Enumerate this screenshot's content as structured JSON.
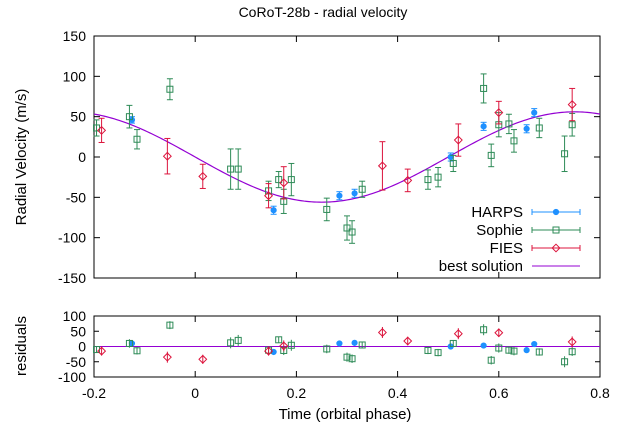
{
  "chart_data": {
    "type": "scatter",
    "title": "CoRoT-28b - radial velocity",
    "xlabel": "Time (orbital phase)",
    "ylabel": "Radial Velocity (m/s)",
    "residual_ylabel": "residuals",
    "xlim": [
      -0.2,
      0.8
    ],
    "ylim": [
      -150,
      150
    ],
    "residual_ylim": [
      -100,
      100
    ],
    "x_ticks": [
      "-0.2",
      "0",
      "0.2",
      "0.4",
      "0.6",
      "0.8"
    ],
    "x_tick_values": [
      -0.2,
      0,
      0.2,
      0.4,
      0.6,
      0.8
    ],
    "y_ticks": [
      "-150",
      "-100",
      "-50",
      "0",
      "50",
      "100",
      "150"
    ],
    "y_tick_values": [
      -150,
      -100,
      -50,
      0,
      50,
      100,
      150
    ],
    "residual_ticks": [
      "-100",
      "-50",
      "0",
      "50",
      "100"
    ],
    "residual_tick_values": [
      -100,
      -50,
      0,
      50,
      100
    ],
    "legend_position": "bottom-right",
    "model": {
      "name": "best solution",
      "amplitude": 56,
      "phase_of_max": 0.75,
      "color": "#9400d3"
    },
    "series": [
      {
        "name": "HARPS",
        "marker": "filled-circle",
        "color": "#1e90ff",
        "x": [
          -0.125,
          0.155,
          0.285,
          0.315,
          0.505,
          0.57,
          0.655,
          0.67
        ],
        "y": [
          46,
          -66,
          -48,
          -45,
          0,
          38,
          35,
          55
        ],
        "err": [
          4,
          5,
          5,
          5,
          5,
          5,
          5,
          5
        ],
        "residuals": [
          10,
          -18,
          10,
          12,
          0,
          3,
          -12,
          8
        ]
      },
      {
        "name": "Sophie",
        "marker": "open-square",
        "color": "#2e8b57",
        "x": [
          -0.195,
          -0.13,
          -0.115,
          -0.05,
          0.07,
          0.085,
          0.145,
          0.165,
          0.175,
          0.19,
          0.26,
          0.3,
          0.31,
          0.33,
          0.46,
          0.48,
          0.51,
          0.57,
          0.585,
          0.6,
          0.62,
          0.63,
          0.68,
          0.73,
          0.745
        ],
        "y": [
          36,
          50,
          22,
          84,
          -15,
          -15,
          -42,
          -28,
          -55,
          -28,
          -65,
          -88,
          -93,
          -40,
          -28,
          -25,
          -8,
          85,
          2,
          40,
          41,
          20,
          36,
          4,
          40
        ],
        "err": [
          10,
          14,
          12,
          13,
          25,
          25,
          12,
          10,
          15,
          20,
          14,
          15,
          14,
          10,
          12,
          12,
          10,
          18,
          14,
          15,
          12,
          14,
          12,
          22,
          14
        ],
        "residuals": [
          -10,
          10,
          -14,
          70,
          12,
          20,
          -12,
          22,
          -13,
          4,
          -8,
          -35,
          -40,
          5,
          -13,
          -20,
          10,
          55,
          -45,
          -5,
          -12,
          -15,
          -18,
          -50,
          -17
        ]
      },
      {
        "name": "FIES",
        "marker": "open-diamond",
        "color": "#dc143c",
        "x": [
          -0.185,
          -0.055,
          0.015,
          0.145,
          0.175,
          0.37,
          0.42,
          0.52,
          0.6,
          0.745
        ],
        "y": [
          33,
          1,
          -24,
          -48,
          -32,
          -11,
          -29,
          21,
          55,
          65
        ],
        "err": [
          15,
          22,
          15,
          15,
          20,
          30,
          14,
          20,
          14,
          20
        ],
        "residuals": [
          -15,
          -35,
          -42,
          -15,
          2,
          46,
          18,
          42,
          45,
          15
        ]
      }
    ]
  }
}
